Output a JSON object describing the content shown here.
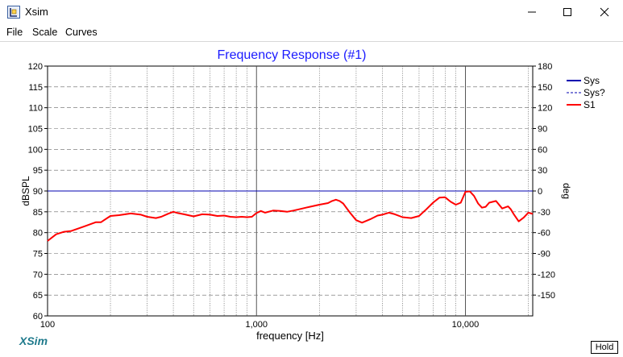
{
  "window": {
    "title": "Xsim"
  },
  "menu": {
    "items": [
      "File",
      "Scale",
      "Curves"
    ]
  },
  "chart_data": {
    "type": "line",
    "title": "Frequency Response (#1)",
    "xlabel": "frequency [Hz]",
    "ylabel": "dBSPL",
    "y2label": "deg",
    "x_scale": "log",
    "xlim": [
      100,
      21000
    ],
    "ylim": [
      60,
      120
    ],
    "y2lim": [
      -180,
      180
    ],
    "x_tick_labels": [
      "100",
      "1,000",
      "10,000"
    ],
    "y_ticks": [
      60,
      65,
      70,
      75,
      80,
      85,
      90,
      95,
      100,
      105,
      110,
      115,
      120
    ],
    "y2_ticks": [
      -150,
      -120,
      -90,
      -60,
      -30,
      0,
      30,
      60,
      90,
      120,
      150,
      180
    ],
    "grid": true,
    "legend_position": "right",
    "series": [
      {
        "name": "Sys",
        "color": "#0000b0",
        "style": "solid",
        "x": [
          100,
          21000
        ],
        "y": [
          90,
          90
        ]
      },
      {
        "name": "Sys?",
        "color": "#0000b0",
        "style": "dashed",
        "x": [],
        "y": []
      },
      {
        "name": "S1",
        "color": "#ff0000",
        "style": "solid",
        "x": [
          100,
          110,
          120,
          130,
          150,
          170,
          180,
          200,
          220,
          250,
          280,
          300,
          330,
          350,
          380,
          400,
          420,
          450,
          500,
          550,
          600,
          650,
          700,
          750,
          800,
          850,
          900,
          950,
          1000,
          1050,
          1100,
          1200,
          1300,
          1400,
          1500,
          1600,
          1800,
          2000,
          2200,
          2300,
          2400,
          2500,
          2600,
          2800,
          3000,
          3200,
          3500,
          3800,
          4000,
          4300,
          4600,
          5000,
          5500,
          6000,
          6500,
          7000,
          7500,
          8000,
          8500,
          9000,
          9500,
          10000,
          10500,
          11000,
          11500,
          12000,
          12500,
          13000,
          14000,
          15000,
          16000,
          16500,
          17000,
          18000,
          19000,
          20000,
          21000
        ],
        "y": [
          78,
          79.6,
          80.2,
          80.4,
          81.5,
          82.5,
          82.5,
          84,
          84.2,
          84.6,
          84.3,
          83.8,
          83.5,
          83.8,
          84.6,
          85,
          84.7,
          84.4,
          83.9,
          84.4,
          84.3,
          84,
          84.1,
          83.8,
          83.7,
          83.8,
          83.7,
          83.8,
          84.7,
          85.2,
          84.8,
          85.3,
          85.2,
          85,
          85.3,
          85.6,
          86.2,
          86.7,
          87.1,
          87.6,
          87.9,
          87.6,
          87,
          84.8,
          83,
          82.4,
          83.2,
          84.1,
          84.3,
          84.8,
          84.4,
          83.7,
          83.5,
          84,
          85.6,
          87.2,
          88.4,
          88.5,
          87.4,
          86.7,
          87.2,
          89.8,
          89.9,
          88.8,
          87,
          86,
          86.2,
          87.2,
          87.6,
          85.8,
          86.3,
          85.6,
          84.5,
          82.7,
          83.6,
          84.8,
          84.5
        ]
      }
    ]
  },
  "logo": {
    "text": "XSim",
    "color": "#1f7a8c"
  },
  "hold_button": {
    "label": "Hold"
  }
}
